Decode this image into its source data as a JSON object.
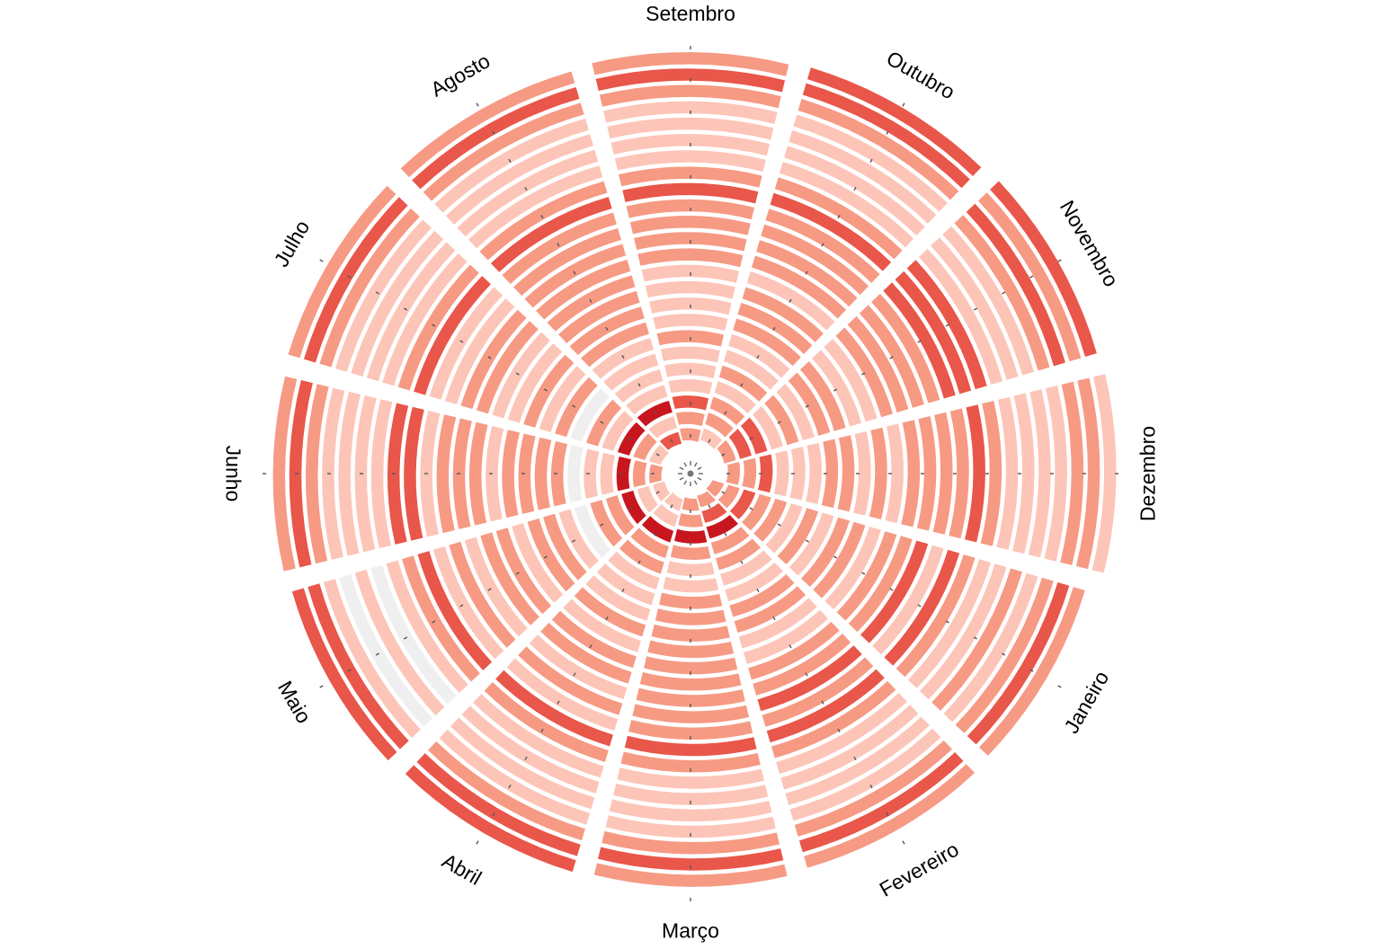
{
  "chart_data": {
    "type": "heatmap",
    "layout": "spiral",
    "title": "",
    "direction": "counter-clockwise",
    "month_labels": [
      "Janeiro",
      "Fevereiro",
      "Março",
      "Abril",
      "Maio",
      "Junho",
      "Julho",
      "Agosto",
      "Setembro",
      "Outubro",
      "Novembro",
      "Dezembro"
    ],
    "turns": 24,
    "color_scale": [
      "#efefef",
      "#fcc5b8",
      "#f69a84",
      "#e9564a",
      "#c8161e"
    ],
    "values": [
      2,
      2,
      2,
      1,
      1,
      2,
      1,
      3,
      2,
      1,
      2,
      2,
      2,
      3,
      2,
      1,
      1,
      2,
      2,
      1,
      2,
      2,
      3,
      2,
      3,
      4,
      4,
      4,
      4,
      4,
      4,
      4,
      3,
      2,
      3,
      3,
      2,
      2,
      2,
      2,
      2,
      1,
      1,
      1,
      1,
      1,
      1,
      1,
      2,
      2,
      1,
      2,
      2,
      1,
      2,
      1,
      1,
      2,
      2,
      1,
      1,
      1,
      1,
      1,
      0,
      0,
      0,
      1,
      1,
      1,
      1,
      1,
      2,
      1,
      2,
      1,
      1,
      2,
      2,
      1,
      2,
      1,
      2,
      2,
      1,
      2,
      2,
      1,
      2,
      2,
      1,
      2,
      1,
      2,
      2,
      2,
      2,
      2,
      2,
      2,
      2,
      2,
      2,
      2,
      1,
      2,
      1,
      1,
      2,
      1,
      2,
      1,
      1,
      2,
      1,
      2,
      1,
      2,
      1,
      2,
      1,
      1,
      2,
      2,
      2,
      1,
      1,
      2,
      1,
      1,
      2,
      1,
      2,
      2,
      2,
      2,
      2,
      2,
      2,
      2,
      2,
      2,
      2,
      2,
      2,
      2,
      2,
      1,
      1,
      2,
      2,
      2,
      2,
      2,
      2,
      2,
      3,
      3,
      2,
      2,
      2,
      2,
      1,
      2,
      2,
      2,
      2,
      2,
      1,
      2,
      2,
      1,
      1,
      1,
      1,
      2,
      2,
      2,
      3,
      2,
      3,
      3,
      3,
      3,
      3,
      3,
      3,
      3,
      3,
      3,
      3,
      3,
      2,
      2,
      2,
      2,
      2,
      3,
      2,
      2,
      2,
      2,
      3,
      2,
      1,
      1,
      1,
      1,
      1,
      1,
      1,
      1,
      1,
      1,
      1,
      1,
      1,
      1,
      1,
      1,
      0,
      1,
      1,
      1,
      1,
      1,
      1,
      1,
      2,
      1,
      1,
      1,
      1,
      1,
      1,
      1,
      1,
      1,
      1,
      1,
      1,
      1,
      1,
      1,
      0,
      1,
      1,
      1,
      1,
      1,
      2,
      1,
      2,
      2,
      2,
      2,
      1,
      2,
      2,
      2,
      2,
      2,
      3,
      2,
      3,
      3,
      3,
      3,
      3,
      3,
      3,
      3,
      3,
      3,
      2,
      2,
      2,
      2,
      2,
      3,
      3,
      2,
      2,
      2,
      2,
      3,
      3,
      1
    ]
  }
}
